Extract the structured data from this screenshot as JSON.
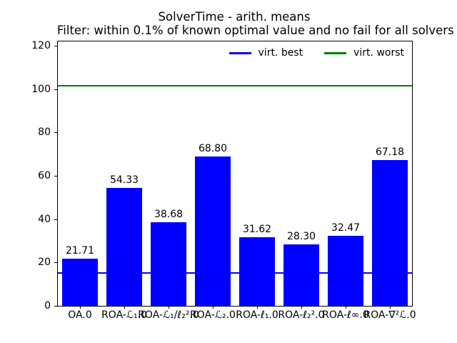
{
  "chart_data": {
    "type": "bar",
    "title": "SolverTime - arith. means",
    "subtitle": "Filter: within 0.1% of known optimal value and no fail for all solvers",
    "categories": [
      "OA.0",
      "ROA-ℒ₁.0",
      "ROA-ℒ₁/ℓ₂².0",
      "ROA-ℒ₂.0",
      "ROA-ℓ₁.0",
      "ROA-ℓ₂².0",
      "ROA-ℓ∞.0",
      "ROA-∇²ℒ.0"
    ],
    "values": [
      21.71,
      54.33,
      38.68,
      68.8,
      31.62,
      28.3,
      32.47,
      67.18
    ],
    "value_labels": [
      "21.71",
      "54.33",
      "38.68",
      "68.80",
      "31.62",
      "28.30",
      "32.47",
      "67.18"
    ],
    "bar_color": "#0000ff",
    "yticks": [
      0,
      20,
      40,
      60,
      80,
      100,
      120
    ],
    "ylim": [
      0,
      122
    ],
    "xlabel": "",
    "ylabel": "",
    "grid": false,
    "legend_position": "upper right inside",
    "legend": [
      {
        "label": "virt. best",
        "color": "#0000ff"
      },
      {
        "label": "virt. worst",
        "color": "#008000"
      }
    ],
    "hlines": [
      {
        "name": "virt. best",
        "y": 15.3,
        "color": "#0000ff"
      },
      {
        "name": "virt. worst",
        "y": 101.4,
        "color": "#008000"
      }
    ],
    "text_color": "#000000",
    "background": "#ffffff"
  }
}
